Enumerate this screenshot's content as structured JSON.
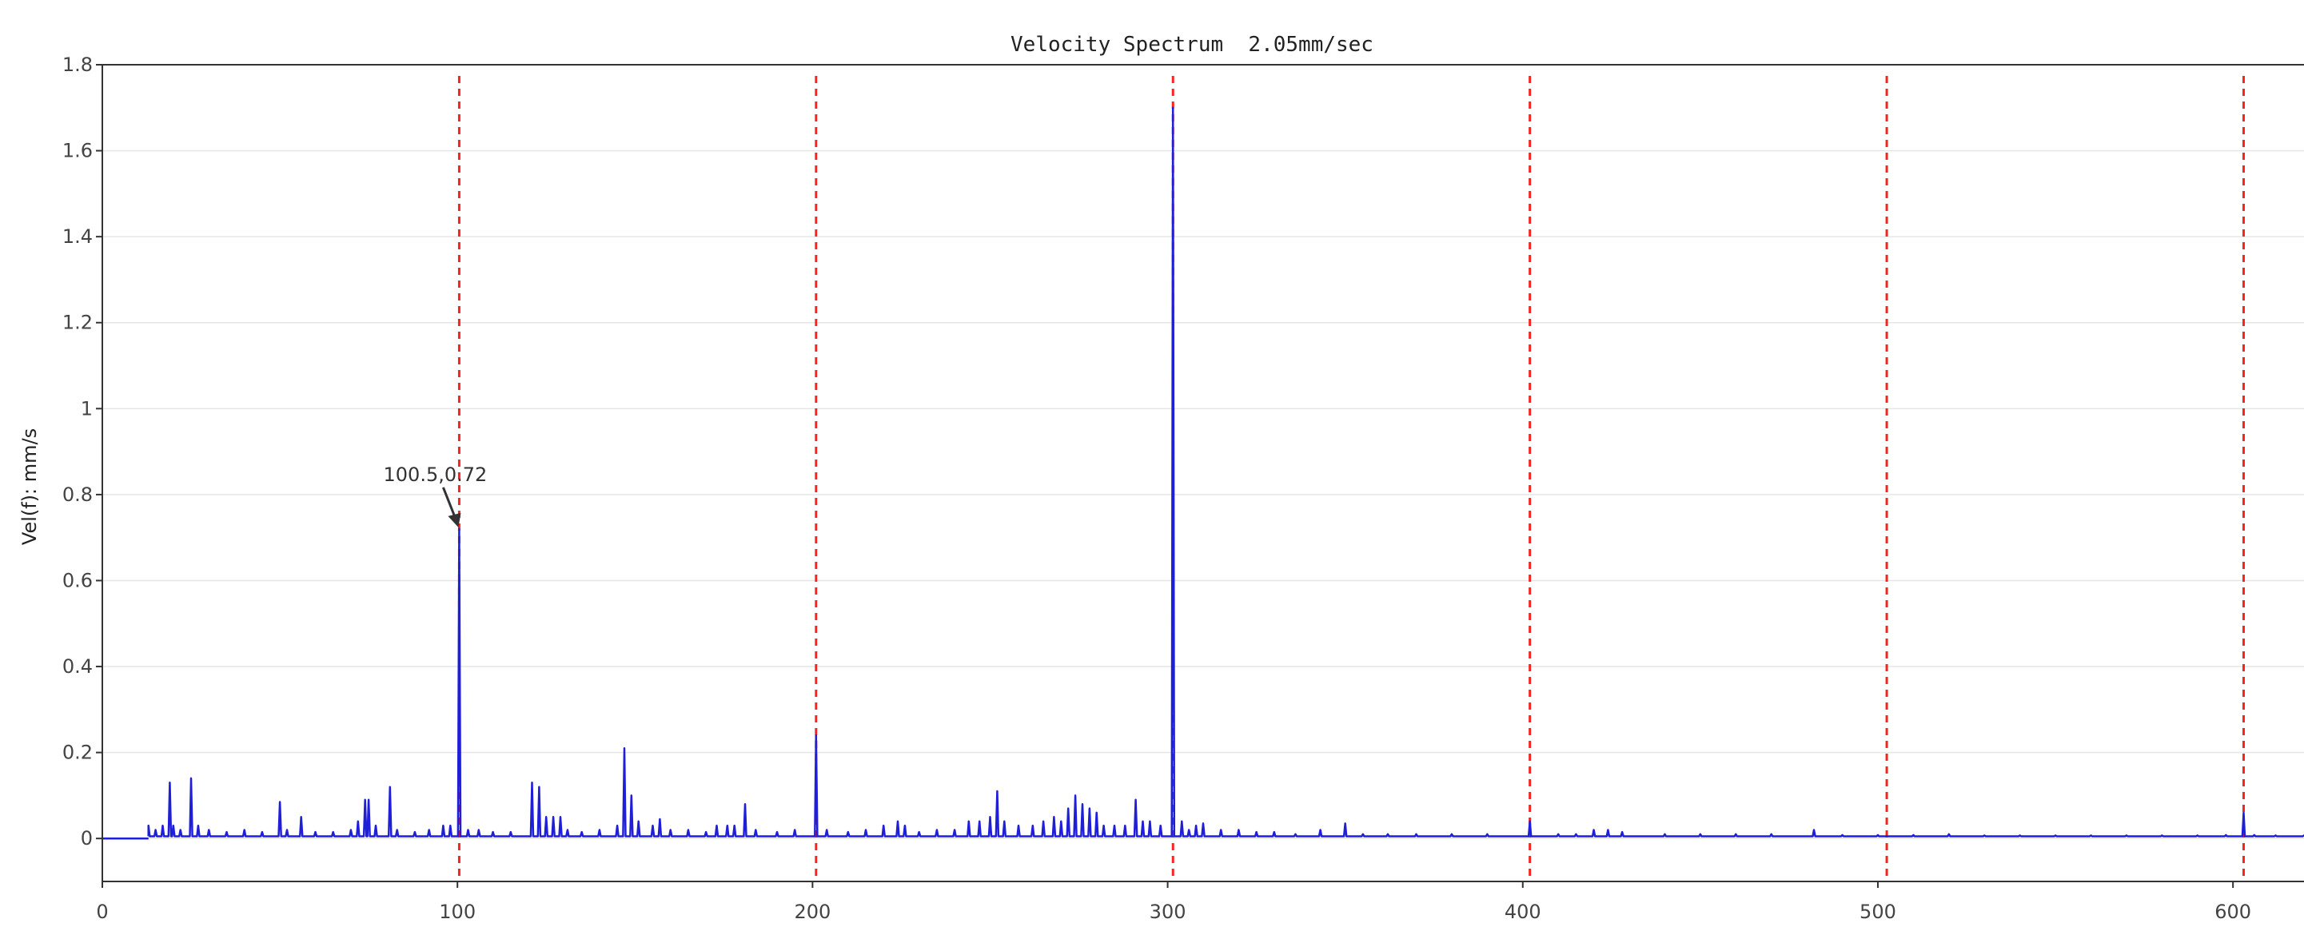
{
  "chart_data": {
    "type": "line",
    "title": "Velocity Spectrum  2.05mm/sec",
    "xlabel": "",
    "ylabel": "Vel(f): mm/s",
    "xlim": [
      0,
      620
    ],
    "ylim": [
      -0.1,
      1.8
    ],
    "x_ticks": [
      0,
      100,
      200,
      300,
      400,
      500,
      600
    ],
    "x_tick_labels": [
      "0",
      "100",
      "200",
      "300",
      "400",
      "500",
      "600"
    ],
    "y_ticks": [
      0,
      0.2,
      0.4,
      0.6,
      0.8,
      1,
      1.2,
      1.4,
      1.6,
      1.8
    ],
    "y_tick_labels": [
      "0",
      "0.2",
      "0.4",
      "0.6",
      "0.8",
      "1",
      "1.2",
      "1.4",
      "1.6",
      "1.8"
    ],
    "grid": "horizontal",
    "colors": {
      "series": "#1f1fd8",
      "harmonic_lines": "#ff2020",
      "grid": "#e6e6e6",
      "axis": "#333333"
    },
    "harmonic_markers": [
      100.5,
      201,
      301.5,
      402,
      502.5,
      603
    ],
    "annotation": {
      "text": "100.5,0.72",
      "x": 100.5,
      "y": 0.72
    },
    "series": [
      {
        "peaks": [
          [
            13,
            0.03
          ],
          [
            15,
            0.02
          ],
          [
            17,
            0.03
          ],
          [
            19,
            0.13
          ],
          [
            20,
            0.03
          ],
          [
            22,
            0.02
          ],
          [
            25,
            0.14
          ],
          [
            27,
            0.03
          ],
          [
            30,
            0.02
          ],
          [
            35,
            0.015
          ],
          [
            40,
            0.02
          ],
          [
            45,
            0.015
          ],
          [
            50,
            0.085
          ],
          [
            52,
            0.02
          ],
          [
            56,
            0.05
          ],
          [
            60,
            0.015
          ],
          [
            65,
            0.015
          ],
          [
            70,
            0.02
          ],
          [
            72,
            0.04
          ],
          [
            74,
            0.09
          ],
          [
            75,
            0.09
          ],
          [
            77,
            0.03
          ],
          [
            81,
            0.12
          ],
          [
            83,
            0.02
          ],
          [
            88,
            0.015
          ],
          [
            92,
            0.02
          ],
          [
            96,
            0.03
          ],
          [
            98,
            0.03
          ],
          [
            100.5,
            0.72
          ],
          [
            103,
            0.02
          ],
          [
            106,
            0.02
          ],
          [
            110,
            0.015
          ],
          [
            115,
            0.015
          ],
          [
            121,
            0.13
          ],
          [
            123,
            0.12
          ],
          [
            125,
            0.05
          ],
          [
            127,
            0.05
          ],
          [
            129,
            0.05
          ],
          [
            131,
            0.02
          ],
          [
            135,
            0.015
          ],
          [
            140,
            0.02
          ],
          [
            145,
            0.03
          ],
          [
            147,
            0.21
          ],
          [
            149,
            0.1
          ],
          [
            151,
            0.04
          ],
          [
            155,
            0.03
          ],
          [
            157,
            0.045
          ],
          [
            160,
            0.02
          ],
          [
            165,
            0.02
          ],
          [
            170,
            0.015
          ],
          [
            173,
            0.03
          ],
          [
            176,
            0.03
          ],
          [
            178,
            0.03
          ],
          [
            181,
            0.08
          ],
          [
            184,
            0.02
          ],
          [
            190,
            0.015
          ],
          [
            195,
            0.02
          ],
          [
            201,
            0.24
          ],
          [
            204,
            0.02
          ],
          [
            210,
            0.015
          ],
          [
            215,
            0.02
          ],
          [
            220,
            0.03
          ],
          [
            224,
            0.04
          ],
          [
            226,
            0.03
          ],
          [
            230,
            0.015
          ],
          [
            235,
            0.02
          ],
          [
            240,
            0.02
          ],
          [
            244,
            0.04
          ],
          [
            247,
            0.04
          ],
          [
            250,
            0.05
          ],
          [
            252,
            0.11
          ],
          [
            254,
            0.04
          ],
          [
            258,
            0.03
          ],
          [
            262,
            0.03
          ],
          [
            265,
            0.04
          ],
          [
            268,
            0.05
          ],
          [
            270,
            0.04
          ],
          [
            272,
            0.07
          ],
          [
            274,
            0.1
          ],
          [
            276,
            0.08
          ],
          [
            278,
            0.07
          ],
          [
            280,
            0.06
          ],
          [
            282,
            0.03
          ],
          [
            285,
            0.03
          ],
          [
            288,
            0.03
          ],
          [
            291,
            0.09
          ],
          [
            293,
            0.04
          ],
          [
            295,
            0.04
          ],
          [
            298,
            0.03
          ],
          [
            301.5,
            1.7
          ],
          [
            304,
            0.04
          ],
          [
            306,
            0.02
          ],
          [
            308,
            0.03
          ],
          [
            310,
            0.035
          ],
          [
            315,
            0.02
          ],
          [
            320,
            0.02
          ],
          [
            325,
            0.015
          ],
          [
            330,
            0.015
          ],
          [
            336,
            0.01
          ],
          [
            343,
            0.02
          ],
          [
            350,
            0.035
          ],
          [
            355,
            0.01
          ],
          [
            362,
            0.01
          ],
          [
            370,
            0.01
          ],
          [
            380,
            0.01
          ],
          [
            390,
            0.01
          ],
          [
            402,
            0.04
          ],
          [
            410,
            0.01
          ],
          [
            415,
            0.01
          ],
          [
            420,
            0.02
          ],
          [
            424,
            0.02
          ],
          [
            428,
            0.015
          ],
          [
            440,
            0.01
          ],
          [
            450,
            0.01
          ],
          [
            460,
            0.01
          ],
          [
            470,
            0.01
          ],
          [
            482,
            0.02
          ],
          [
            490,
            0.008
          ],
          [
            500,
            0.008
          ],
          [
            510,
            0.008
          ],
          [
            520,
            0.01
          ],
          [
            530,
            0.007
          ],
          [
            540,
            0.007
          ],
          [
            550,
            0.007
          ],
          [
            560,
            0.007
          ],
          [
            570,
            0.007
          ],
          [
            580,
            0.007
          ],
          [
            590,
            0.007
          ],
          [
            598,
            0.008
          ],
          [
            603,
            0.06
          ],
          [
            606,
            0.008
          ],
          [
            612,
            0.007
          ],
          [
            620,
            0.007
          ]
        ],
        "x_start": 13,
        "x_end": 620
      }
    ]
  }
}
